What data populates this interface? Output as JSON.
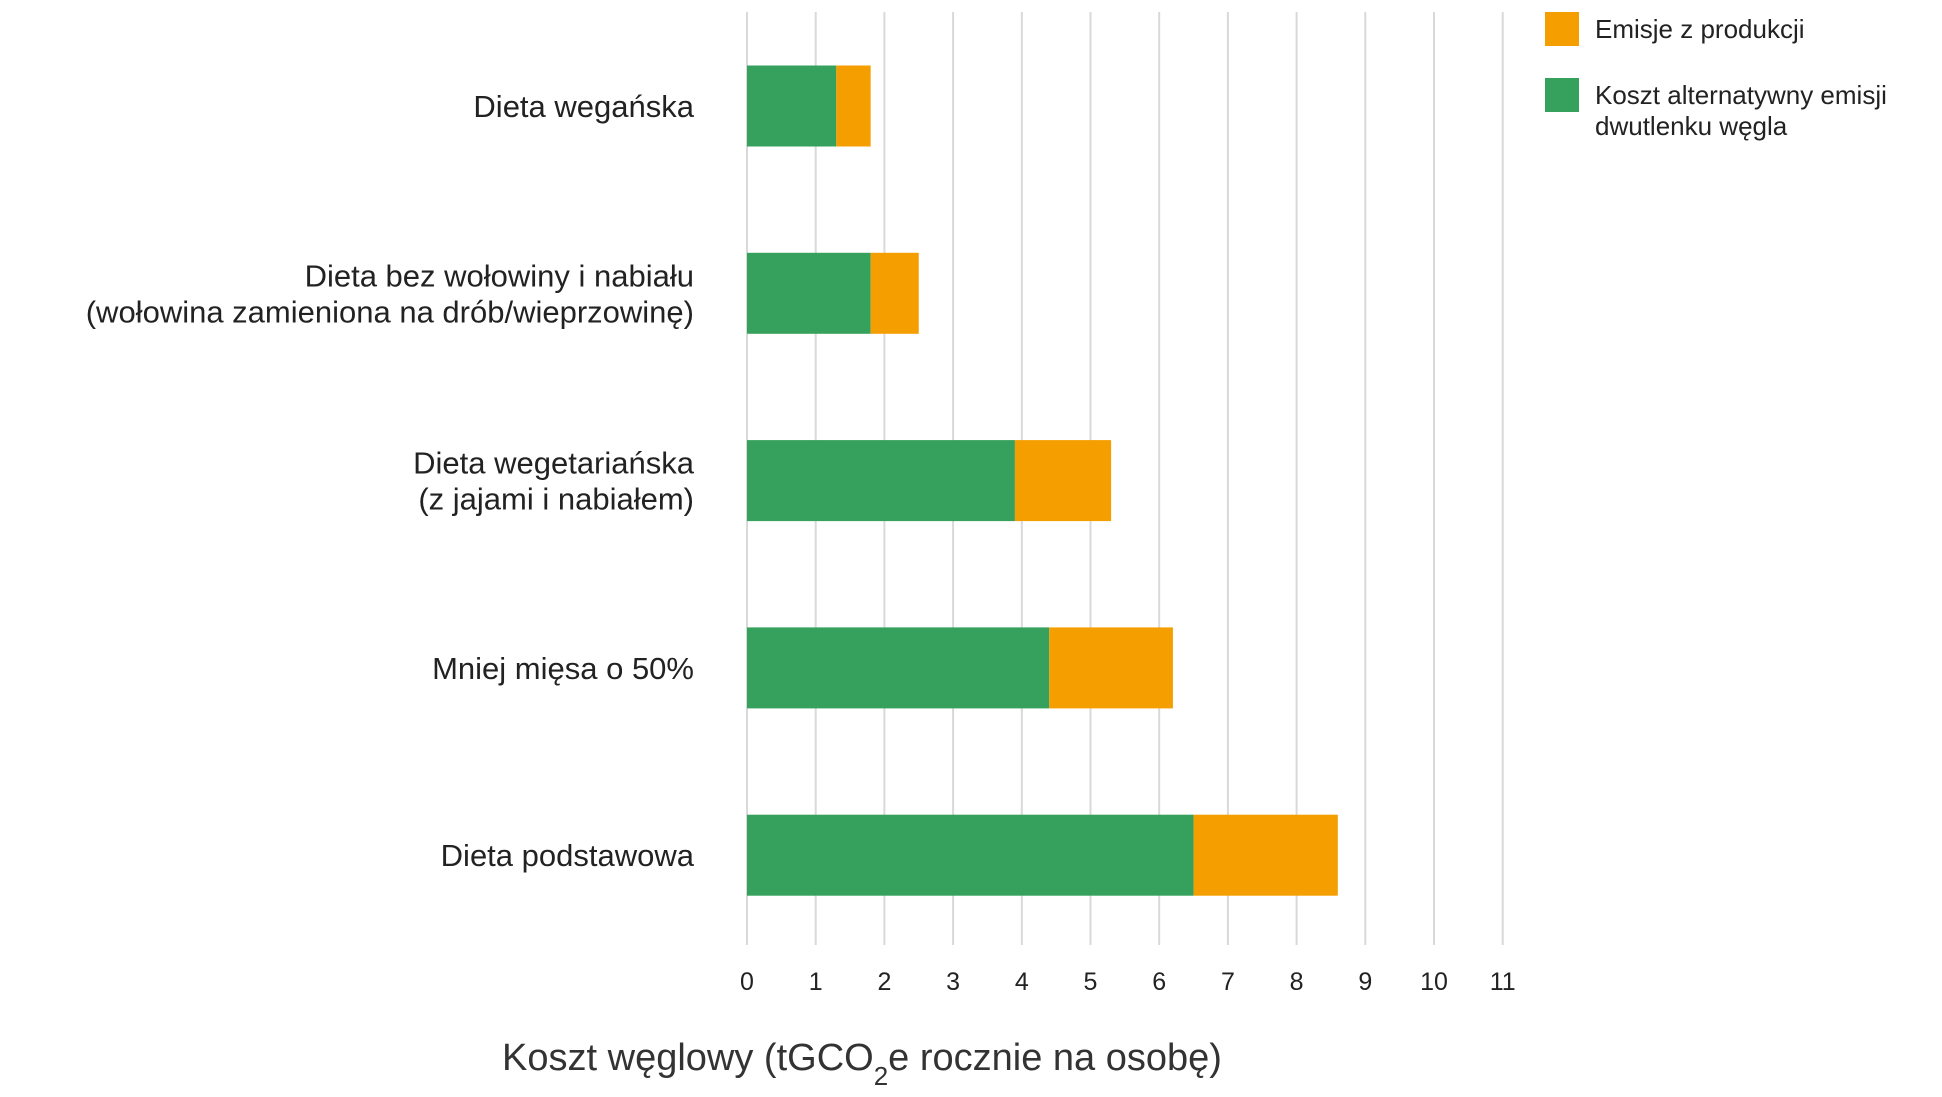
{
  "chart_data": {
    "type": "bar",
    "orientation": "horizontal",
    "stacked": true,
    "categories": [
      [
        "Dieta wegańska"
      ],
      [
        "Dieta bez wołowiny i nabiału",
        "(wołowina zamieniona na drób/wieprzowinę)"
      ],
      [
        "Dieta wegetariańska",
        "(z jajami i nabiałem)"
      ],
      [
        "Mniej mięsa o 50%"
      ],
      [
        "Dieta podstawowa"
      ]
    ],
    "series": [
      {
        "name": "Koszt alternatywny emisji dwutlenku węgla",
        "legend_lines": [
          "Koszt alternatywny emisji",
          "dwutlenku węgla"
        ],
        "color": "#36a15c",
        "values": [
          1.3,
          1.8,
          3.9,
          4.4,
          6.5
        ]
      },
      {
        "name": "Emisje z produkcji",
        "legend_lines": [
          "Emisje z produkcji"
        ],
        "color": "#f59e00",
        "values": [
          0.5,
          0.7,
          1.4,
          1.8,
          2.1
        ]
      }
    ],
    "legend_order": [
      1,
      0
    ],
    "xlim": [
      0,
      11
    ],
    "xticks": [
      "0",
      "1",
      "2",
      "3",
      "4",
      "5",
      "6",
      "7",
      "8",
      "9",
      "10",
      "11"
    ],
    "xlabel_parts": {
      "before": "Koszt węglowy (tGCO",
      "sub": "2",
      "after": "e rocznie na osobę)"
    },
    "grid": true,
    "legend_position": "top-right"
  }
}
